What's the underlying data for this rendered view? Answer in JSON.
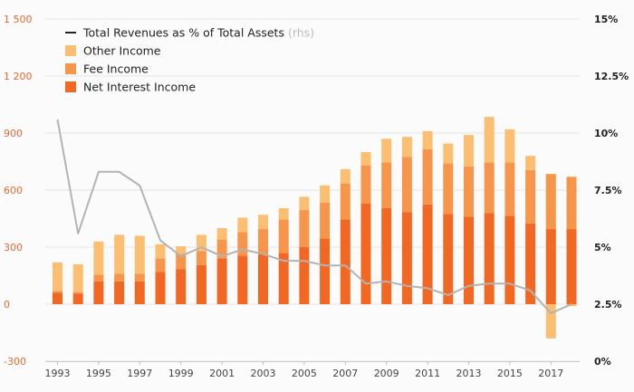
{
  "chart_data": {
    "type": "bar",
    "title": "",
    "xlabel": "",
    "ylabel": "",
    "ylim": [
      -300,
      1500
    ],
    "y2lim": [
      0,
      15
    ],
    "left_ticks": [
      "-300",
      "0",
      "300",
      "600",
      "900",
      "1 200",
      "1 500"
    ],
    "right_ticks": [
      "0%",
      "2.5%",
      "5%",
      "7.5%",
      "10%",
      "12.5%",
      "15%"
    ],
    "x_tick_labels": [
      "1993",
      "1995",
      "1997",
      "1999",
      "2001",
      "2003",
      "2005",
      "2007",
      "2009",
      "2011",
      "2013",
      "2015",
      "2017"
    ],
    "grid": true,
    "legend_position": "top-left",
    "categories": [
      1993,
      1994,
      1995,
      1996,
      1997,
      1998,
      1999,
      2000,
      2001,
      2002,
      2003,
      2004,
      2005,
      2006,
      2007,
      2008,
      2009,
      2010,
      2011,
      2012,
      2013,
      2014,
      2015,
      2016,
      2017,
      2018
    ],
    "series": [
      {
        "name": "Net Interest Income",
        "type": "bar",
        "color": "#f26722",
        "values": [
          60,
          55,
          120,
          120,
          120,
          170,
          185,
          205,
          240,
          255,
          265,
          270,
          300,
          345,
          445,
          530,
          505,
          485,
          525,
          475,
          460,
          480,
          465,
          425,
          395,
          395
        ]
      },
      {
        "name": "Fee Income",
        "type": "bar",
        "color": "#f7964a",
        "values": [
          10,
          10,
          35,
          40,
          40,
          70,
          80,
          75,
          100,
          125,
          130,
          175,
          195,
          190,
          190,
          200,
          240,
          290,
          290,
          265,
          265,
          265,
          280,
          280,
          290,
          275
        ]
      },
      {
        "name": "Other Income",
        "type": "bar",
        "color": "#fcbf72",
        "values": [
          150,
          145,
          175,
          205,
          200,
          75,
          40,
          85,
          60,
          75,
          75,
          60,
          70,
          90,
          75,
          70,
          125,
          105,
          95,
          105,
          165,
          240,
          175,
          75,
          -180,
          -10
        ]
      },
      {
        "name": "Total Revenues as % of Total Assets",
        "name_suffix": " (rhs)",
        "type": "line",
        "axis": "right",
        "color": "#b3b3b3",
        "values": [
          10.6,
          5.6,
          8.3,
          8.3,
          7.7,
          5.3,
          4.6,
          5.0,
          4.6,
          4.9,
          4.7,
          4.4,
          4.4,
          4.2,
          4.2,
          3.4,
          3.5,
          3.3,
          3.2,
          2.9,
          3.3,
          3.4,
          3.4,
          3.1,
          2.1,
          2.5
        ]
      }
    ]
  },
  "colors": {
    "background": "#fbfbfb",
    "grid": "#e6e6e6",
    "left_axis_text": "#e8682f",
    "right_axis_text": "#222222",
    "legend_line_marker": "#222222"
  }
}
